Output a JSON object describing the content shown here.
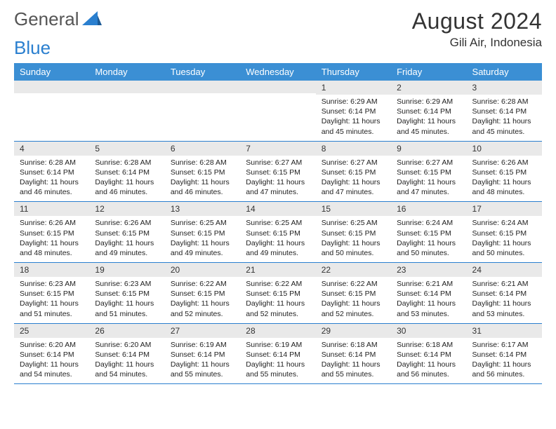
{
  "brand": {
    "part1": "General",
    "part2": "Blue"
  },
  "title": "August 2024",
  "location": "Gili Air, Indonesia",
  "header_bg": "#3b8fd4",
  "daynum_bg": "#e9e9e9",
  "rule_color": "#2a7fcf",
  "weekdays": [
    "Sunday",
    "Monday",
    "Tuesday",
    "Wednesday",
    "Thursday",
    "Friday",
    "Saturday"
  ],
  "weeks": [
    [
      {
        "n": "",
        "sr": "",
        "ss": "",
        "dl": ""
      },
      {
        "n": "",
        "sr": "",
        "ss": "",
        "dl": ""
      },
      {
        "n": "",
        "sr": "",
        "ss": "",
        "dl": ""
      },
      {
        "n": "",
        "sr": "",
        "ss": "",
        "dl": ""
      },
      {
        "n": "1",
        "sr": "Sunrise: 6:29 AM",
        "ss": "Sunset: 6:14 PM",
        "dl": "Daylight: 11 hours and 45 minutes."
      },
      {
        "n": "2",
        "sr": "Sunrise: 6:29 AM",
        "ss": "Sunset: 6:14 PM",
        "dl": "Daylight: 11 hours and 45 minutes."
      },
      {
        "n": "3",
        "sr": "Sunrise: 6:28 AM",
        "ss": "Sunset: 6:14 PM",
        "dl": "Daylight: 11 hours and 45 minutes."
      }
    ],
    [
      {
        "n": "4",
        "sr": "Sunrise: 6:28 AM",
        "ss": "Sunset: 6:14 PM",
        "dl": "Daylight: 11 hours and 46 minutes."
      },
      {
        "n": "5",
        "sr": "Sunrise: 6:28 AM",
        "ss": "Sunset: 6:14 PM",
        "dl": "Daylight: 11 hours and 46 minutes."
      },
      {
        "n": "6",
        "sr": "Sunrise: 6:28 AM",
        "ss": "Sunset: 6:15 PM",
        "dl": "Daylight: 11 hours and 46 minutes."
      },
      {
        "n": "7",
        "sr": "Sunrise: 6:27 AM",
        "ss": "Sunset: 6:15 PM",
        "dl": "Daylight: 11 hours and 47 minutes."
      },
      {
        "n": "8",
        "sr": "Sunrise: 6:27 AM",
        "ss": "Sunset: 6:15 PM",
        "dl": "Daylight: 11 hours and 47 minutes."
      },
      {
        "n": "9",
        "sr": "Sunrise: 6:27 AM",
        "ss": "Sunset: 6:15 PM",
        "dl": "Daylight: 11 hours and 47 minutes."
      },
      {
        "n": "10",
        "sr": "Sunrise: 6:26 AM",
        "ss": "Sunset: 6:15 PM",
        "dl": "Daylight: 11 hours and 48 minutes."
      }
    ],
    [
      {
        "n": "11",
        "sr": "Sunrise: 6:26 AM",
        "ss": "Sunset: 6:15 PM",
        "dl": "Daylight: 11 hours and 48 minutes."
      },
      {
        "n": "12",
        "sr": "Sunrise: 6:26 AM",
        "ss": "Sunset: 6:15 PM",
        "dl": "Daylight: 11 hours and 49 minutes."
      },
      {
        "n": "13",
        "sr": "Sunrise: 6:25 AM",
        "ss": "Sunset: 6:15 PM",
        "dl": "Daylight: 11 hours and 49 minutes."
      },
      {
        "n": "14",
        "sr": "Sunrise: 6:25 AM",
        "ss": "Sunset: 6:15 PM",
        "dl": "Daylight: 11 hours and 49 minutes."
      },
      {
        "n": "15",
        "sr": "Sunrise: 6:25 AM",
        "ss": "Sunset: 6:15 PM",
        "dl": "Daylight: 11 hours and 50 minutes."
      },
      {
        "n": "16",
        "sr": "Sunrise: 6:24 AM",
        "ss": "Sunset: 6:15 PM",
        "dl": "Daylight: 11 hours and 50 minutes."
      },
      {
        "n": "17",
        "sr": "Sunrise: 6:24 AM",
        "ss": "Sunset: 6:15 PM",
        "dl": "Daylight: 11 hours and 50 minutes."
      }
    ],
    [
      {
        "n": "18",
        "sr": "Sunrise: 6:23 AM",
        "ss": "Sunset: 6:15 PM",
        "dl": "Daylight: 11 hours and 51 minutes."
      },
      {
        "n": "19",
        "sr": "Sunrise: 6:23 AM",
        "ss": "Sunset: 6:15 PM",
        "dl": "Daylight: 11 hours and 51 minutes."
      },
      {
        "n": "20",
        "sr": "Sunrise: 6:22 AM",
        "ss": "Sunset: 6:15 PM",
        "dl": "Daylight: 11 hours and 52 minutes."
      },
      {
        "n": "21",
        "sr": "Sunrise: 6:22 AM",
        "ss": "Sunset: 6:15 PM",
        "dl": "Daylight: 11 hours and 52 minutes."
      },
      {
        "n": "22",
        "sr": "Sunrise: 6:22 AM",
        "ss": "Sunset: 6:15 PM",
        "dl": "Daylight: 11 hours and 52 minutes."
      },
      {
        "n": "23",
        "sr": "Sunrise: 6:21 AM",
        "ss": "Sunset: 6:14 PM",
        "dl": "Daylight: 11 hours and 53 minutes."
      },
      {
        "n": "24",
        "sr": "Sunrise: 6:21 AM",
        "ss": "Sunset: 6:14 PM",
        "dl": "Daylight: 11 hours and 53 minutes."
      }
    ],
    [
      {
        "n": "25",
        "sr": "Sunrise: 6:20 AM",
        "ss": "Sunset: 6:14 PM",
        "dl": "Daylight: 11 hours and 54 minutes."
      },
      {
        "n": "26",
        "sr": "Sunrise: 6:20 AM",
        "ss": "Sunset: 6:14 PM",
        "dl": "Daylight: 11 hours and 54 minutes."
      },
      {
        "n": "27",
        "sr": "Sunrise: 6:19 AM",
        "ss": "Sunset: 6:14 PM",
        "dl": "Daylight: 11 hours and 55 minutes."
      },
      {
        "n": "28",
        "sr": "Sunrise: 6:19 AM",
        "ss": "Sunset: 6:14 PM",
        "dl": "Daylight: 11 hours and 55 minutes."
      },
      {
        "n": "29",
        "sr": "Sunrise: 6:18 AM",
        "ss": "Sunset: 6:14 PM",
        "dl": "Daylight: 11 hours and 55 minutes."
      },
      {
        "n": "30",
        "sr": "Sunrise: 6:18 AM",
        "ss": "Sunset: 6:14 PM",
        "dl": "Daylight: 11 hours and 56 minutes."
      },
      {
        "n": "31",
        "sr": "Sunrise: 6:17 AM",
        "ss": "Sunset: 6:14 PM",
        "dl": "Daylight: 11 hours and 56 minutes."
      }
    ]
  ]
}
